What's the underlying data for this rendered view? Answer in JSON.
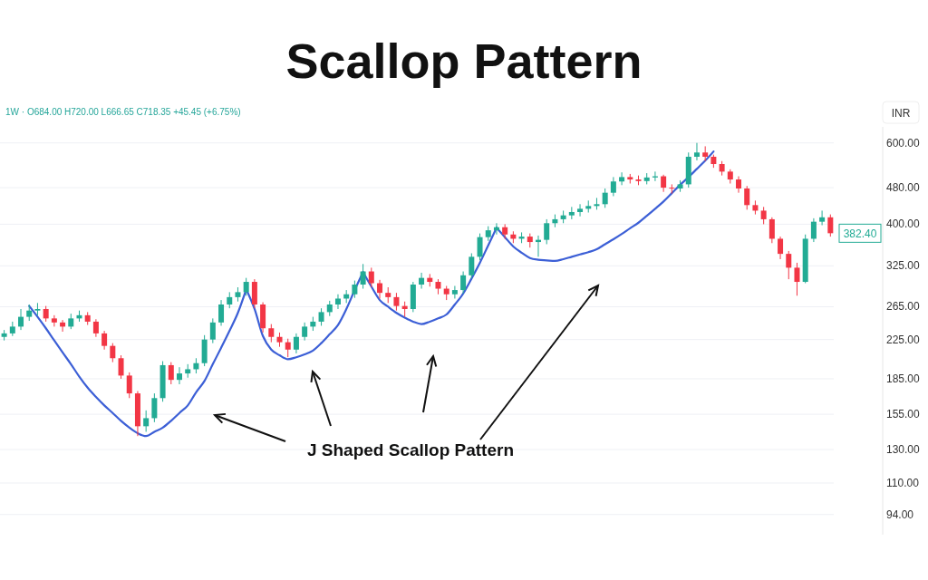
{
  "chart_data": {
    "type": "candlestick",
    "title": "Scallop Pattern",
    "ylabel": "INR",
    "annotations": [
      "1W · O684.00 H720.00 L666.65 C718.35 +45.45 (+6.75%)",
      "J Shaped Scallop Pattern",
      "382.40"
    ],
    "log": true,
    "grid": "y",
    "tick_labels": "y",
    "ylim": [
      85,
      650
    ],
    "yticks": [
      {
        "value": 94,
        "label": "94.00"
      },
      {
        "value": 110,
        "label": "110.00"
      },
      {
        "value": 130,
        "label": "130.00"
      },
      {
        "value": 155,
        "label": "155.00"
      },
      {
        "value": 185,
        "label": "185.00"
      },
      {
        "value": 225,
        "label": "225.00"
      },
      {
        "value": 265,
        "label": "265.00"
      },
      {
        "value": 325,
        "label": "325.00"
      },
      {
        "value": 400,
        "label": "400.00"
      },
      {
        "value": 480,
        "label": "480.00"
      },
      {
        "value": 600,
        "label": "600.00"
      }
    ],
    "categories": [
      null,
      null,
      null,
      null,
      null,
      null,
      null,
      null,
      null,
      null,
      null,
      null,
      null,
      null,
      null,
      null,
      null,
      null,
      null,
      null,
      null,
      null,
      null,
      null,
      null,
      null,
      null,
      null,
      null,
      null,
      null,
      null,
      null,
      null,
      null,
      null,
      null,
      null,
      null,
      null,
      null,
      null,
      null,
      null,
      null,
      null,
      null,
      null,
      null,
      null,
      null,
      null,
      null,
      null,
      null,
      null,
      null,
      null,
      null,
      null,
      null,
      null,
      null,
      null,
      null,
      null,
      null,
      null,
      null,
      null,
      null,
      null,
      null,
      null,
      null,
      null,
      null,
      null,
      null,
      null,
      null,
      null,
      null,
      null,
      null,
      null,
      null,
      null,
      null,
      null,
      null,
      null,
      null,
      null,
      null,
      null,
      null,
      null,
      null,
      null
    ],
    "ohlc": [
      [
        228,
        236,
        224,
        232
      ],
      [
        232,
        246,
        229,
        240
      ],
      [
        240,
        262,
        236,
        252
      ],
      [
        252,
        268,
        247,
        260
      ],
      [
        260,
        270,
        254,
        262
      ],
      [
        262,
        266,
        246,
        250
      ],
      [
        250,
        254,
        240,
        245
      ],
      [
        245,
        248,
        234,
        240
      ],
      [
        240,
        256,
        237,
        250
      ],
      [
        250,
        260,
        246,
        254
      ],
      [
        254,
        258,
        242,
        246
      ],
      [
        246,
        249,
        228,
        232
      ],
      [
        232,
        235,
        214,
        218
      ],
      [
        218,
        221,
        201,
        205
      ],
      [
        205,
        208,
        185,
        188
      ],
      [
        188,
        191,
        168,
        172
      ],
      [
        172,
        174,
        139,
        146
      ],
      [
        146,
        158,
        142,
        152
      ],
      [
        152,
        172,
        149,
        168
      ],
      [
        168,
        202,
        165,
        198
      ],
      [
        198,
        201,
        180,
        184
      ],
      [
        184,
        196,
        180,
        190
      ],
      [
        190,
        199,
        186,
        194
      ],
      [
        194,
        205,
        190,
        200
      ],
      [
        200,
        230,
        197,
        225
      ],
      [
        225,
        250,
        221,
        245
      ],
      [
        245,
        274,
        241,
        268
      ],
      [
        268,
        285,
        263,
        278
      ],
      [
        278,
        292,
        272,
        285
      ],
      [
        285,
        306,
        280,
        300
      ],
      [
        300,
        304,
        263,
        268
      ],
      [
        268,
        271,
        233,
        238
      ],
      [
        238,
        243,
        222,
        228
      ],
      [
        228,
        233,
        217,
        222
      ],
      [
        222,
        226,
        206,
        214
      ],
      [
        214,
        232,
        210,
        228
      ],
      [
        228,
        245,
        224,
        240
      ],
      [
        240,
        252,
        235,
        246
      ],
      [
        246,
        263,
        241,
        258
      ],
      [
        258,
        273,
        253,
        268
      ],
      [
        268,
        282,
        262,
        276
      ],
      [
        276,
        288,
        270,
        282
      ],
      [
        282,
        302,
        277,
        296
      ],
      [
        296,
        328,
        290,
        316
      ],
      [
        316,
        322,
        292,
        298
      ],
      [
        298,
        303,
        276,
        284
      ],
      [
        284,
        292,
        270,
        278
      ],
      [
        278,
        284,
        260,
        266
      ],
      [
        266,
        272,
        252,
        262
      ],
      [
        262,
        300,
        258,
        296
      ],
      [
        296,
        314,
        290,
        306
      ],
      [
        306,
        312,
        293,
        300
      ],
      [
        300,
        304,
        282,
        290
      ],
      [
        290,
        294,
        274,
        282
      ],
      [
        282,
        294,
        276,
        288
      ],
      [
        288,
        316,
        283,
        310
      ],
      [
        310,
        346,
        305,
        340
      ],
      [
        340,
        382,
        334,
        375
      ],
      [
        375,
        396,
        368,
        388
      ],
      [
        388,
        402,
        380,
        394
      ],
      [
        394,
        400,
        372,
        380
      ],
      [
        380,
        386,
        364,
        372
      ],
      [
        372,
        384,
        364,
        376
      ],
      [
        376,
        382,
        356,
        366
      ],
      [
        366,
        378,
        340,
        370
      ],
      [
        370,
        410,
        362,
        402
      ],
      [
        402,
        420,
        394,
        410
      ],
      [
        410,
        428,
        402,
        418
      ],
      [
        418,
        436,
        410,
        425
      ],
      [
        425,
        442,
        416,
        432
      ],
      [
        432,
        450,
        424,
        438
      ],
      [
        438,
        456,
        430,
        442
      ],
      [
        442,
        478,
        434,
        468
      ],
      [
        468,
        506,
        460,
        495
      ],
      [
        495,
        518,
        486,
        506
      ],
      [
        506,
        514,
        490,
        500
      ],
      [
        500,
        510,
        486,
        496
      ],
      [
        496,
        516,
        488,
        505
      ],
      [
        505,
        520,
        496,
        508
      ],
      [
        508,
        512,
        470,
        480
      ],
      [
        480,
        488,
        466,
        478
      ],
      [
        478,
        498,
        470,
        488
      ],
      [
        488,
        572,
        480,
        560
      ],
      [
        560,
        600,
        550,
        572
      ],
      [
        572,
        590,
        548,
        560
      ],
      [
        560,
        566,
        530,
        540
      ],
      [
        540,
        548,
        510,
        520
      ],
      [
        520,
        526,
        490,
        500
      ],
      [
        500,
        508,
        468,
        478
      ],
      [
        478,
        484,
        430,
        440
      ],
      [
        440,
        450,
        420,
        428
      ],
      [
        428,
        436,
        400,
        410
      ],
      [
        410,
        414,
        364,
        372
      ],
      [
        372,
        376,
        336,
        345
      ],
      [
        345,
        350,
        304,
        322
      ],
      [
        322,
        330,
        280,
        300
      ],
      [
        300,
        380,
        298,
        372
      ],
      [
        372,
        412,
        366,
        405
      ],
      [
        405,
        428,
        398,
        414
      ],
      [
        414,
        420,
        376,
        382.4
      ]
    ],
    "series": [
      {
        "type": "line",
        "color": "#3c5fd6",
        "values": [
          null,
          null,
          null,
          266,
          252,
          238,
          224,
          211,
          199,
          187,
          177,
          169,
          162,
          156,
          150,
          145,
          141,
          139,
          142,
          145,
          150,
          156,
          162,
          173,
          183,
          199,
          216,
          235,
          257,
          289,
          null,
          null,
          null,
          null,
          null,
          null,
          null,
          null,
          null,
          null,
          null,
          null,
          null,
          null,
          null,
          null,
          null,
          null,
          null,
          null,
          null,
          null,
          null,
          null,
          null,
          null,
          null,
          null,
          null,
          null,
          null,
          null,
          null,
          null,
          null,
          null,
          null,
          null,
          null,
          null,
          null,
          null,
          null,
          null,
          null,
          null,
          null,
          null,
          null,
          null,
          null,
          null,
          null,
          null,
          null,
          null,
          null,
          null,
          null,
          null,
          null,
          null,
          null,
          null,
          null,
          null,
          null,
          null,
          null,
          null
        ]
      },
      {
        "type": "line",
        "color": "#3c5fd6",
        "values": [
          null,
          null,
          null,
          null,
          null,
          null,
          null,
          null,
          null,
          null,
          null,
          null,
          null,
          null,
          null,
          null,
          null,
          null,
          null,
          null,
          null,
          null,
          null,
          null,
          null,
          null,
          null,
          null,
          null,
          289,
          262,
          229,
          214,
          208,
          204,
          206,
          209,
          213,
          221,
          231,
          242,
          262,
          288,
          315,
          null,
          null,
          null,
          null,
          null,
          null,
          null,
          null,
          null,
          null,
          null,
          null,
          null,
          null,
          null,
          null,
          null,
          null,
          null,
          null,
          null,
          null,
          null,
          null,
          null,
          null,
          null,
          null,
          null,
          null,
          null,
          null,
          null,
          null,
          null,
          null,
          null,
          null,
          null,
          null,
          null,
          null,
          null,
          null,
          null,
          null,
          null,
          null,
          null,
          null,
          null,
          null,
          null,
          null,
          null,
          null
        ]
      },
      {
        "type": "line",
        "color": "#3c5fd6",
        "values": [
          null,
          null,
          null,
          null,
          null,
          null,
          null,
          null,
          null,
          null,
          null,
          null,
          null,
          null,
          null,
          null,
          null,
          null,
          null,
          null,
          null,
          null,
          null,
          null,
          null,
          null,
          null,
          null,
          null,
          null,
          null,
          null,
          null,
          null,
          null,
          null,
          null,
          null,
          null,
          null,
          null,
          null,
          null,
          315,
          293,
          274,
          265,
          257,
          251,
          246,
          243,
          246,
          250,
          255,
          268,
          283,
          305,
          330,
          360,
          393,
          null,
          null,
          null,
          null,
          null,
          null,
          null,
          null,
          null,
          null,
          null,
          null,
          null,
          null,
          null,
          null,
          null,
          null,
          null,
          null,
          null,
          null,
          null,
          null,
          null,
          null,
          null,
          null,
          null,
          null,
          null,
          null,
          null,
          null,
          null,
          null,
          null,
          null,
          null,
          null
        ]
      },
      {
        "type": "line",
        "color": "#3c5fd6",
        "values": [
          null,
          null,
          null,
          null,
          null,
          null,
          null,
          null,
          null,
          null,
          null,
          null,
          null,
          null,
          null,
          null,
          null,
          null,
          null,
          null,
          null,
          null,
          null,
          null,
          null,
          null,
          null,
          null,
          null,
          null,
          null,
          null,
          null,
          null,
          null,
          null,
          null,
          null,
          null,
          null,
          null,
          null,
          null,
          null,
          null,
          null,
          null,
          null,
          null,
          null,
          null,
          null,
          null,
          null,
          null,
          null,
          null,
          null,
          null,
          393,
          375,
          358,
          347,
          338,
          335,
          334,
          333,
          336,
          340,
          344,
          348,
          353,
          362,
          371,
          381,
          392,
          403,
          417,
          432,
          448,
          467,
          487,
          506,
          527,
          549,
          575,
          null,
          null,
          null,
          null,
          null,
          null,
          null,
          null,
          null,
          null,
          null,
          null,
          null,
          null
        ]
      }
    ]
  }
}
